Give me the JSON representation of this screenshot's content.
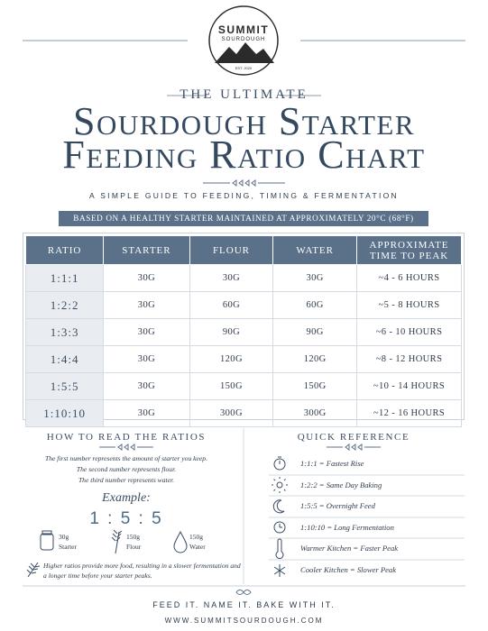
{
  "logo": {
    "name": "SUMMIT",
    "sub": "SOURDOUGH",
    "est": "EST. 2020"
  },
  "header": {
    "kicker": "THE ULTIMATE",
    "title_line1": "Sourdough Starter",
    "title_line2": "Feeding Ratio Chart",
    "subtitle": "A SIMPLE GUIDE TO FEEDING, TIMING & FERMENTATION",
    "banner": "BASED ON A HEALTHY STARTER MAINTAINED AT APPROXIMATELY 20°C (68°F)"
  },
  "table": {
    "columns": [
      "RATIO",
      "STARTER",
      "FLOUR",
      "WATER",
      "APPROXIMATE TIME TO PEAK"
    ],
    "rows": [
      [
        "1:1:1",
        "30G",
        "30G",
        "30G",
        "~4 - 6 HOURS"
      ],
      [
        "1:2:2",
        "30G",
        "60G",
        "60G",
        "~5 - 8 HOURS"
      ],
      [
        "1:3:3",
        "30G",
        "90G",
        "90G",
        "~6 - 10 HOURS"
      ],
      [
        "1:4:4",
        "30G",
        "120G",
        "120G",
        "~8 - 12 HOURS"
      ],
      [
        "1:5:5",
        "30G",
        "150G",
        "150G",
        "~10 - 14 HOURS"
      ],
      [
        "1:10:10",
        "30G",
        "300G",
        "300G",
        "~12 - 16 HOURS"
      ]
    ]
  },
  "how_to": {
    "title": "HOW TO READ THE RATIOS",
    "lines": [
      "The first number represents the amount of starter you keep.",
      "The second number represents flour.",
      "The third number represents water."
    ],
    "example_label": "Example:",
    "example_ratio": "1 : 5 : 5",
    "items": [
      {
        "amount": "30g",
        "label": "Starter"
      },
      {
        "amount": "150g",
        "label": "Flour"
      },
      {
        "amount": "150g",
        "label": "Water"
      }
    ],
    "note": "Higher ratios provide more food, resulting in a slower fermentation and a longer time before your starter peaks."
  },
  "quick_reference": {
    "title": "QUICK REFERENCE",
    "items": [
      "1:1:1 = Fastest Rise",
      "1:2:2 = Same Day Baking",
      "1:5:5 = Overnight Feed",
      "1:10:10 = Long Fermentation",
      "Warmer Kitchen = Faster Peak",
      "Cooler Kitchen = Slower Peak"
    ]
  },
  "footer": {
    "tagline": "FEED IT. NAME IT. BAKE WITH IT.",
    "url": "WWW.SUMMITSOURDOUGH.COM"
  }
}
